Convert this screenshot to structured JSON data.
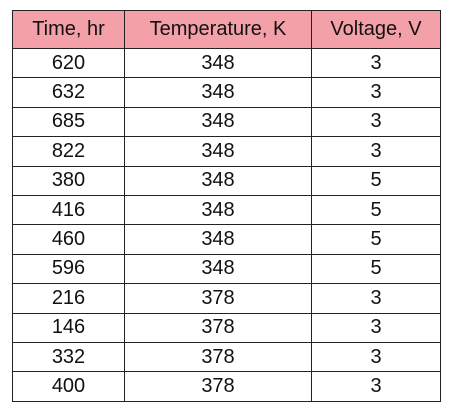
{
  "table": {
    "header": [
      "Time, hr",
      "Temperature, K",
      "Voltage, V"
    ],
    "rows": [
      [
        620,
        348,
        3
      ],
      [
        632,
        348,
        3
      ],
      [
        685,
        348,
        3
      ],
      [
        822,
        348,
        3
      ],
      [
        380,
        348,
        5
      ],
      [
        416,
        348,
        5
      ],
      [
        460,
        348,
        5
      ],
      [
        596,
        348,
        5
      ],
      [
        216,
        378,
        3
      ],
      [
        146,
        378,
        3
      ],
      [
        332,
        378,
        3
      ],
      [
        400,
        378,
        3
      ]
    ]
  }
}
